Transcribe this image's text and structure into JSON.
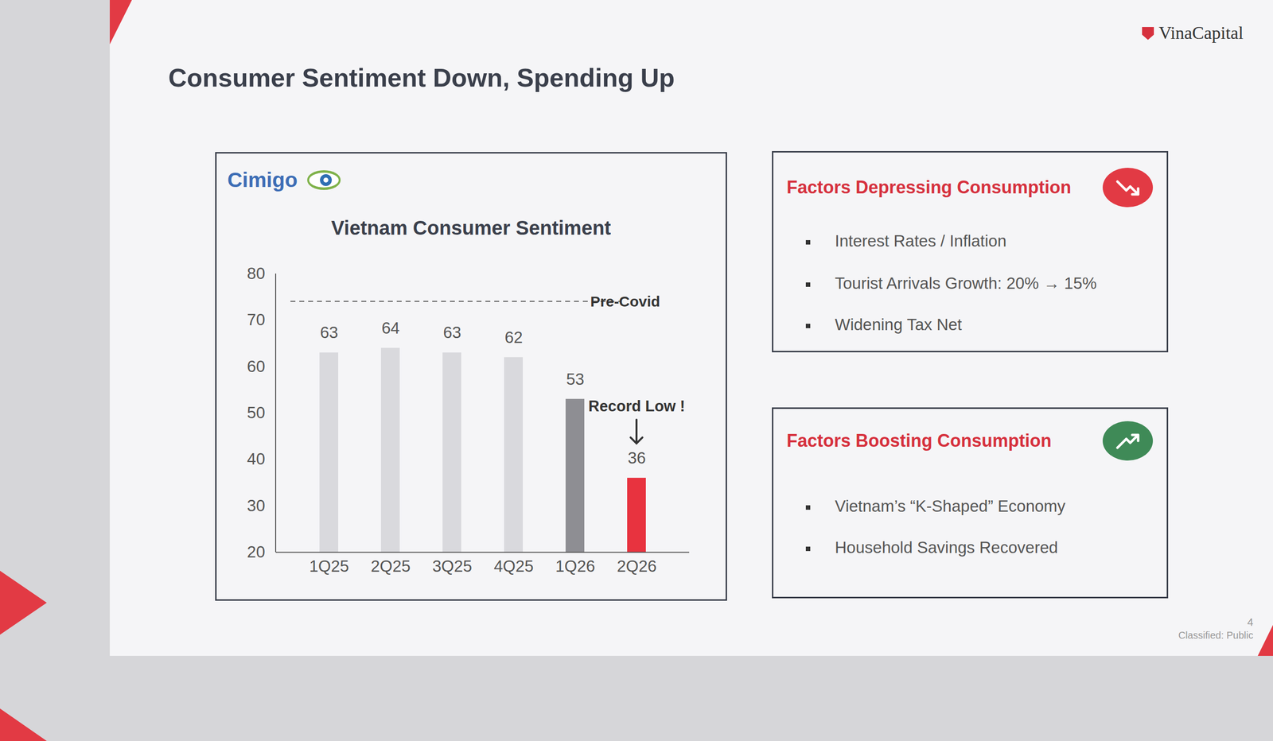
{
  "chart_data": {
    "type": "bar",
    "title": "Vietnam Consumer Sentiment",
    "source": "Cimigo",
    "categories": [
      "1Q25",
      "2Q25",
      "3Q25",
      "4Q25",
      "1Q26",
      "2Q26"
    ],
    "values": [
      63,
      64,
      63,
      62,
      53,
      36
    ],
    "colors": [
      "#d9d9dd",
      "#d9d9dd",
      "#d9d9dd",
      "#d9d9dd",
      "#8e8e93",
      "#e8333f"
    ],
    "ylim": [
      20,
      80
    ],
    "yticks": [
      20,
      30,
      40,
      50,
      60,
      70,
      80
    ],
    "grid": false,
    "data_labels": true,
    "reference_line": {
      "label": "Pre-Covid",
      "value": 74
    },
    "annotation": {
      "text": "Record Low !",
      "category": "2Q26"
    }
  },
  "slide": {
    "title": "Consumer Sentiment Down, Spending Up",
    "logo": "VinaCapital",
    "boxes": [
      {
        "heading": "Factors Depressing Consumption",
        "trend": "down",
        "items": [
          "Interest Rates / Inflation",
          "Tourist Arrivals Growth: 20% → 15%",
          "Widening Tax Net"
        ]
      },
      {
        "heading": "Factors Boosting Consumption",
        "trend": "up",
        "items": [
          "Vietnam’s “K-Shaped” Economy",
          "Household Savings Recovered"
        ]
      }
    ],
    "page": "4",
    "classification": "Classified: Public"
  }
}
